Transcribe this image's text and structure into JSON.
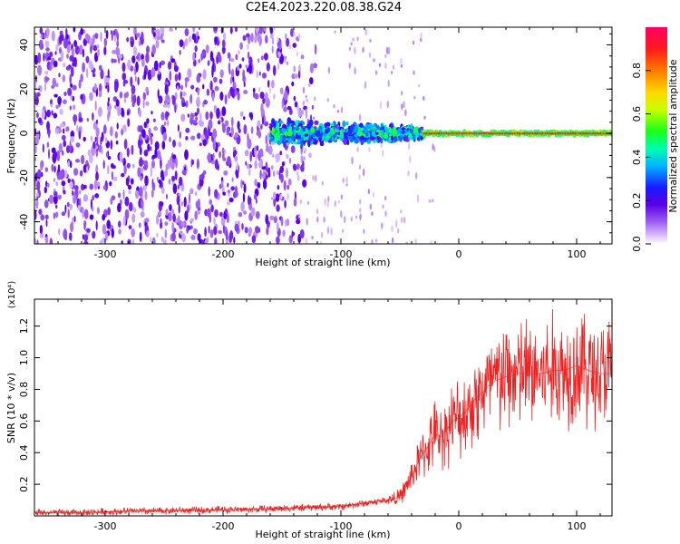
{
  "figure_title": "C2E4.2023.220.08.38.G24",
  "chart_data": [
    {
      "type": "heatmap",
      "xlabel": "Height of straight line (km)",
      "ylabel": "Frequency (Hz)",
      "xlim": [
        -360,
        130
      ],
      "ylim": [
        -50,
        48
      ],
      "x_ticks": [
        -300,
        -200,
        -100,
        0,
        100
      ],
      "y_ticks": [
        -40,
        -20,
        0,
        20,
        40
      ],
      "colorbar": {
        "label": "Normalized spectral amplitude",
        "range": [
          0.0,
          1.0
        ],
        "ticks": [
          0.0,
          0.2,
          0.4,
          0.6,
          0.8
        ],
        "colors": [
          "#ffffff",
          "#e6ccff",
          "#a060f0",
          "#5a00e6",
          "#1a1aff",
          "#00b4ff",
          "#00ffb0",
          "#19ff19",
          "#c8ff00",
          "#ffd800",
          "#ff7a00",
          "#ff1a1a",
          "#ff0066"
        ]
      },
      "description_series": [
        {
          "x_range": [
            -360,
            -160
          ],
          "y_range": [
            -50,
            48
          ],
          "amplitude": 0.15
        },
        {
          "x_range": [
            -160,
            -30
          ],
          "y_range": [
            -10,
            12
          ],
          "amplitude": 0.35
        },
        {
          "x_range": [
            -30,
            130
          ],
          "y_range": [
            -2,
            2
          ],
          "amplitude": 0.95
        }
      ]
    },
    {
      "type": "line",
      "xlabel": "Height of straight line (km)",
      "ylabel": "SNR (10 * v/v)",
      "multiplier": "(x10⁴)",
      "xlim": [
        -360,
        130
      ],
      "ylim": [
        0,
        1.37
      ],
      "x_ticks": [
        -300,
        -200,
        -100,
        0,
        100
      ],
      "y_ticks": [
        0.2,
        0.4,
        0.6,
        0.8,
        1.0,
        1.2
      ],
      "color": "#ee2222",
      "series": [
        {
          "x": [
            -360,
            -340,
            -320,
            -300,
            -280,
            -260,
            -240,
            -220,
            -200,
            -180,
            -160,
            -140,
            -120,
            -100,
            -90,
            -80,
            -70,
            -60,
            -50,
            -45,
            -40,
            -35,
            -30,
            -25,
            -20,
            -15,
            -10,
            -5,
            0,
            5,
            10,
            15,
            20,
            25,
            30,
            40,
            50,
            60,
            70,
            80,
            90,
            100,
            110,
            120,
            130
          ],
          "values": [
            0.02,
            0.02,
            0.02,
            0.025,
            0.03,
            0.03,
            0.035,
            0.035,
            0.04,
            0.04,
            0.045,
            0.05,
            0.055,
            0.06,
            0.07,
            0.08,
            0.09,
            0.1,
            0.12,
            0.18,
            0.25,
            0.33,
            0.4,
            0.45,
            0.52,
            0.5,
            0.55,
            0.6,
            0.62,
            0.65,
            0.7,
            0.75,
            0.78,
            0.82,
            0.85,
            0.88,
            0.9,
            0.9,
            0.9,
            0.92,
            0.92,
            0.95,
            0.92,
            0.9,
            0.9
          ]
        }
      ]
    }
  ]
}
